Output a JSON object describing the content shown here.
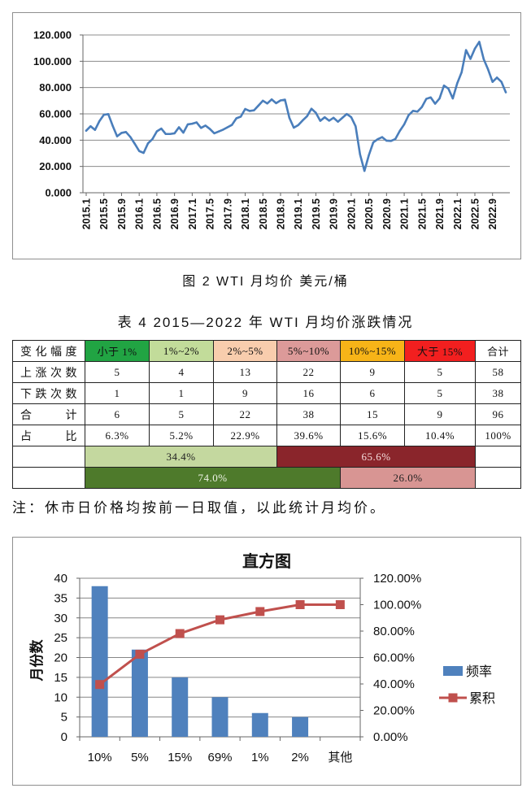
{
  "figure_caption": "图 2  WTI 月均价  美元/桶",
  "table_title": "表 4  2015—2022 年 WTI 月均价涨跌情况",
  "table": {
    "header": [
      "变化幅度",
      "小于 1%",
      "1%~2%",
      "2%~5%",
      "5%~10%",
      "10%~15%",
      "大于 15%",
      "合计"
    ],
    "header_colors": [
      "#ffffff",
      "#21a443",
      "#c2dc9a",
      "#f8cdad",
      "#dc9a99",
      "#f7b418",
      "#f21f1f",
      "#ffffff"
    ],
    "rows": [
      [
        "上涨次数",
        "5",
        "4",
        "13",
        "22",
        "9",
        "5",
        "58"
      ],
      [
        "下跌次数",
        "1",
        "1",
        "9",
        "16",
        "6",
        "5",
        "38"
      ],
      [
        "合计",
        "6",
        "5",
        "22",
        "38",
        "15",
        "9",
        "96"
      ],
      [
        "占比",
        "6.3%",
        "5.2%",
        "22.9%",
        "39.6%",
        "15.6%",
        "10.4%",
        "100%"
      ]
    ],
    "share_row_1": [
      {
        "value": "34.4%",
        "color": "#c4d89f",
        "text_color": "#222222"
      },
      {
        "value": "65.6%",
        "color": "#8a252b",
        "text_color": "#f6dede"
      }
    ],
    "share_row_2": [
      {
        "value": "74.0%",
        "color": "#4e7a2b",
        "text_color": "#eef3e6"
      },
      {
        "value": "26.0%",
        "color": "#d89593",
        "text_color": "#222222"
      }
    ]
  },
  "note": "注：休市日价格均按前一日取值，以此统计月均价。",
  "chart_data": [
    {
      "type": "line",
      "x": [
        "2015.1",
        "2015.2",
        "2015.3",
        "2015.4",
        "2015.5",
        "2015.6",
        "2015.7",
        "2015.8",
        "2015.9",
        "2015.10",
        "2015.11",
        "2015.12",
        "2016.1",
        "2016.2",
        "2016.3",
        "2016.4",
        "2016.5",
        "2016.6",
        "2016.7",
        "2016.8",
        "2016.9",
        "2016.10",
        "2016.11",
        "2016.12",
        "2017.1",
        "2017.2",
        "2017.3",
        "2017.4",
        "2017.5",
        "2017.6",
        "2017.7",
        "2017.8",
        "2017.9",
        "2017.10",
        "2017.11",
        "2017.12",
        "2018.1",
        "2018.2",
        "2018.3",
        "2018.4",
        "2018.5",
        "2018.6",
        "2018.7",
        "2018.8",
        "2018.9",
        "2018.10",
        "2018.11",
        "2018.12",
        "2019.1",
        "2019.2",
        "2019.3",
        "2019.4",
        "2019.5",
        "2019.6",
        "2019.7",
        "2019.8",
        "2019.9",
        "2019.10",
        "2019.11",
        "2019.12",
        "2020.1",
        "2020.2",
        "2020.3",
        "2020.4",
        "2020.5",
        "2020.6",
        "2020.7",
        "2020.8",
        "2020.9",
        "2020.10",
        "2020.11",
        "2020.12",
        "2021.1",
        "2021.2",
        "2021.3",
        "2021.4",
        "2021.5",
        "2021.6",
        "2021.7",
        "2021.8",
        "2021.9",
        "2021.10",
        "2021.11",
        "2021.12",
        "2022.1",
        "2022.2",
        "2022.3",
        "2022.4",
        "2022.5",
        "2022.6",
        "2022.7",
        "2022.8",
        "2022.9",
        "2022.10",
        "2022.11",
        "2022.12"
      ],
      "x_tick_labels": [
        "2015.1",
        "2015.5",
        "2015.9",
        "2016.1",
        "2016.5",
        "2016.9",
        "2017.1",
        "2017.5",
        "2017.9",
        "2018.1",
        "2018.5",
        "2018.9",
        "2019.1",
        "2019.5",
        "2019.9",
        "2020.1",
        "2020.5",
        "2020.9",
        "2021.1",
        "2021.5",
        "2021.9",
        "2022.1",
        "2022.5",
        "2022.9"
      ],
      "series": [
        {
          "color": "#4a7ebb",
          "values": [
            47.2,
            50.6,
            47.8,
            54.5,
            59.3,
            59.8,
            50.9,
            42.9,
            45.5,
            46.2,
            42.4,
            37.2,
            31.7,
            30.3,
            37.6,
            40.8,
            46.7,
            48.8,
            44.7,
            44.7,
            45.2,
            49.8,
            45.7,
            52.0,
            52.5,
            53.5,
            49.3,
            51.1,
            48.5,
            45.2,
            46.6,
            48.0,
            49.8,
            51.6,
            56.6,
            57.9,
            63.7,
            62.2,
            62.7,
            66.3,
            70.0,
            67.9,
            71.0,
            68.1,
            70.2,
            70.8,
            57.0,
            49.5,
            51.4,
            55.0,
            58.2,
            63.9,
            60.8,
            54.7,
            57.4,
            54.8,
            57.0,
            54.0,
            57.0,
            59.9,
            57.5,
            50.5,
            29.2,
            16.6,
            28.6,
            38.3,
            40.7,
            42.3,
            39.6,
            39.4,
            40.9,
            47.0,
            52.0,
            59.0,
            62.3,
            61.7,
            65.2,
            71.4,
            72.5,
            67.7,
            71.7,
            81.5,
            79.2,
            71.7,
            83.2,
            91.6,
            108.5,
            101.8,
            109.6,
            114.8,
            101.6,
            93.7,
            84.3,
            87.6,
            84.4,
            76.4
          ]
        }
      ],
      "ylim": [
        0,
        120
      ],
      "y_tick_labels": [
        "0.000",
        "20.000",
        "40.000",
        "60.000",
        "80.000",
        "100.000",
        "120.000"
      ],
      "grid": true
    },
    {
      "type": "bar",
      "title": "直方图",
      "ylabel": "月份数",
      "categories": [
        "10%",
        "5%",
        "15%",
        "69%",
        "1%",
        "2%",
        "其他"
      ],
      "series": [
        {
          "name": "频率",
          "type": "bar",
          "axis": "left",
          "color": "#4f81bd",
          "values": [
            38,
            22,
            15,
            10,
            6,
            5,
            0
          ]
        },
        {
          "name": "累积",
          "type": "line",
          "axis": "right",
          "color": "#c0504d",
          "values": [
            39.58,
            62.5,
            78.13,
            88.54,
            94.79,
            100.0,
            100.0
          ]
        }
      ],
      "ylim": [
        0,
        40
      ],
      "y_tick_labels": [
        "0",
        "5",
        "10",
        "15",
        "20",
        "25",
        "30",
        "35",
        "40"
      ],
      "y2lim": [
        0,
        120
      ],
      "y2_tick_labels": [
        "0.00%",
        "20.00%",
        "40.00%",
        "60.00%",
        "80.00%",
        "100.00%",
        "120.00%"
      ],
      "grid": true,
      "legend": "right"
    }
  ]
}
